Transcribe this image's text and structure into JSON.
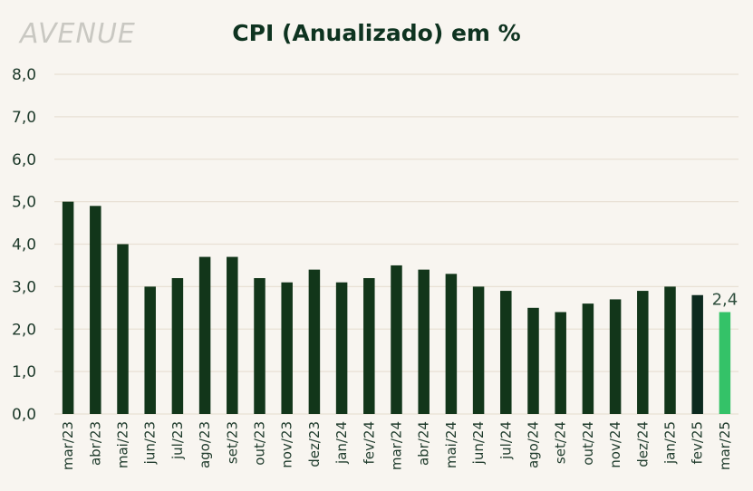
{
  "logo_text": "AVENUE",
  "colors": {
    "background": "#f8f5f0",
    "bar": "#12361a",
    "bar_highlight_dark": "#0c2a1f",
    "bar_highlight_green": "#34c268",
    "grid": "#e8e0d4"
  },
  "chart_data": {
    "type": "bar",
    "title": "CPI (Anualizado) em %",
    "xlabel": "",
    "ylabel": "",
    "ylim": [
      0,
      8
    ],
    "yticks": [
      "0,0",
      "1,0",
      "2,0",
      "3,0",
      "4,0",
      "5,0",
      "6,0",
      "7,0",
      "8,0"
    ],
    "grid": true,
    "categories": [
      "mar/23",
      "abr/23",
      "mai/23",
      "jun/23",
      "jul/23",
      "ago/23",
      "set/23",
      "out/23",
      "nov/23",
      "dez/23",
      "jan/24",
      "fev/24",
      "mar/24",
      "abr/24",
      "mai/24",
      "jun/24",
      "jul/24",
      "ago/24",
      "set/24",
      "out/24",
      "nov/24",
      "dez/24",
      "jan/25",
      "fev/25",
      "mar/25"
    ],
    "values": [
      5.0,
      4.9,
      4.0,
      3.0,
      3.2,
      3.7,
      3.7,
      3.2,
      3.1,
      3.4,
      3.1,
      3.2,
      3.5,
      3.4,
      3.3,
      3.0,
      2.9,
      2.5,
      2.4,
      2.6,
      2.7,
      2.9,
      3.0,
      2.8,
      2.4
    ],
    "data_labels": [
      {
        "index": 24,
        "text": "2,4"
      }
    ]
  }
}
